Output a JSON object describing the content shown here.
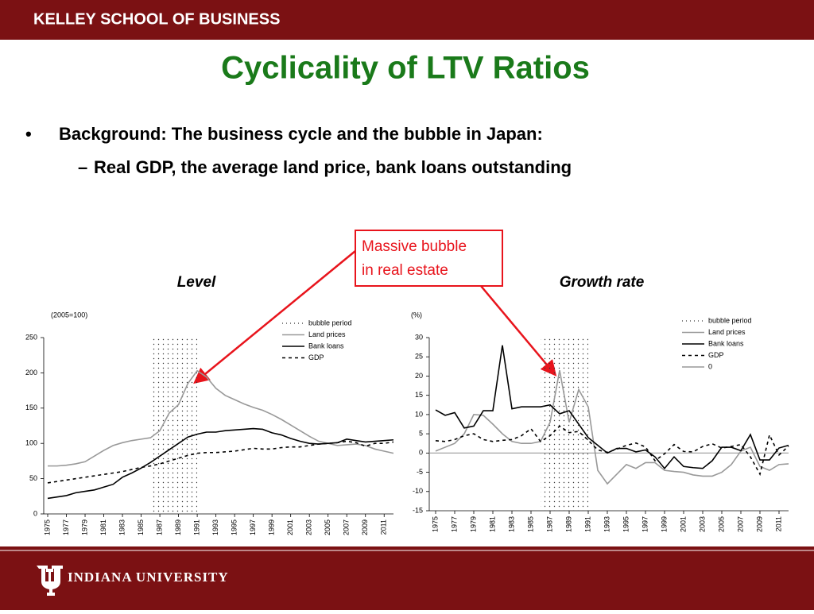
{
  "header": {
    "brand": "KELLEY SCHOOL OF BUSINESS"
  },
  "title": "Cyclicality of LTV Ratios",
  "bullets": [
    {
      "text": "Background: The business cycle and the bubble in Japan:",
      "sub": [
        "Real GDP, the average land price, bank loans outstanding"
      ]
    }
  ],
  "callout": [
    "Massive bubble",
    "in real estate"
  ],
  "footer": {
    "brand": "INDIANA UNIVERSITY"
  },
  "chart_data": [
    {
      "type": "line",
      "title": "Level",
      "unit_label": "(2005=100)",
      "x": [
        1975,
        1976,
        1977,
        1978,
        1979,
        1980,
        1981,
        1982,
        1983,
        1984,
        1985,
        1986,
        1987,
        1988,
        1989,
        1990,
        1991,
        1992,
        1993,
        1994,
        1995,
        1996,
        1997,
        1998,
        1999,
        2000,
        2001,
        2002,
        2003,
        2004,
        2005,
        2006,
        2007,
        2008,
        2009,
        2010,
        2011,
        2012
      ],
      "xlim": [
        1975,
        2012
      ],
      "xticks": [
        1975,
        1977,
        1979,
        1981,
        1983,
        1985,
        1987,
        1989,
        1991,
        1993,
        1995,
        1997,
        1999,
        2001,
        2003,
        2005,
        2007,
        2009,
        2011
      ],
      "ylim": [
        0,
        250
      ],
      "yticks": [
        0,
        50,
        100,
        150,
        200,
        250
      ],
      "bubble_period": {
        "name": "bubble period",
        "start": 1986,
        "end": 1991
      },
      "series": [
        {
          "name": "Land prices",
          "color": "#999999",
          "style": "solid",
          "values": [
            68,
            68,
            69,
            71,
            74,
            82,
            90,
            97,
            101,
            104,
            106,
            108,
            118,
            143,
            155,
            185,
            203,
            194,
            178,
            168,
            162,
            156,
            151,
            147,
            141,
            134,
            126,
            118,
            110,
            103,
            100,
            97,
            98,
            99,
            97,
            92,
            89,
            86
          ]
        },
        {
          "name": "Bank loans",
          "color": "#000000",
          "style": "solid",
          "values": [
            22,
            24,
            26,
            30,
            32,
            34,
            38,
            42,
            52,
            58,
            65,
            73,
            82,
            91,
            100,
            109,
            113,
            116,
            116,
            118,
            119,
            120,
            121,
            120,
            115,
            112,
            107,
            103,
            100,
            99,
            100,
            101,
            106,
            104,
            102,
            103,
            104,
            105
          ]
        },
        {
          "name": "GDP",
          "color": "#000000",
          "style": "dashed",
          "values": [
            44,
            46,
            48,
            50,
            52,
            54,
            56,
            58,
            60,
            63,
            66,
            68,
            71,
            75,
            79,
            83,
            86,
            87,
            87,
            88,
            89,
            91,
            93,
            92,
            92,
            94,
            95,
            95,
            97,
            99,
            100,
            101,
            103,
            101,
            96,
            100,
            100,
            102
          ]
        }
      ]
    },
    {
      "type": "line",
      "title": "Growth rate",
      "unit_label": "(%)",
      "x": [
        1975,
        1976,
        1977,
        1978,
        1979,
        1980,
        1981,
        1982,
        1983,
        1984,
        1985,
        1986,
        1987,
        1988,
        1989,
        1990,
        1991,
        1992,
        1993,
        1994,
        1995,
        1996,
        1997,
        1998,
        1999,
        2000,
        2001,
        2002,
        2003,
        2004,
        2005,
        2006,
        2007,
        2008,
        2009,
        2010,
        2011,
        2012
      ],
      "xlim": [
        1975,
        2012
      ],
      "xticks": [
        1975,
        1977,
        1979,
        1981,
        1983,
        1985,
        1987,
        1989,
        1991,
        1993,
        1995,
        1997,
        1999,
        2001,
        2003,
        2005,
        2007,
        2009,
        2011
      ],
      "ylim": [
        -15,
        30
      ],
      "yticks": [
        -15,
        -10,
        -5,
        0,
        5,
        10,
        15,
        20,
        25,
        30
      ],
      "bubble_period": {
        "name": "bubble period",
        "start": 1986,
        "end": 1991
      },
      "series": [
        {
          "name": "Land prices",
          "color": "#999999",
          "style": "solid",
          "values": [
            0.5,
            1.5,
            2.5,
            5,
            10,
            9.8,
            7.5,
            5,
            3,
            2.5,
            2.5,
            3,
            8,
            21.5,
            8,
            16.5,
            12,
            -4.5,
            -8,
            -5.5,
            -3,
            -4,
            -2.5,
            -2.5,
            -4.5,
            -4.8,
            -5,
            -5.7,
            -6,
            -6,
            -5,
            -3,
            0.5,
            1.5,
            -3.5,
            -4.5,
            -3,
            -2.8
          ]
        },
        {
          "name": "Bank loans",
          "color": "#000000",
          "style": "solid",
          "values": [
            11.2,
            9.8,
            10.5,
            6.5,
            7,
            11,
            11,
            28,
            11.5,
            12,
            12,
            12,
            12.5,
            10.2,
            11,
            7.5,
            4,
            2,
            0,
            1.2,
            1.2,
            0.3,
            0.8,
            -1,
            -4,
            -1,
            -3.5,
            -3.8,
            -4,
            -2,
            1.5,
            1.5,
            0.6,
            4.8,
            -1.8,
            -1.8,
            1.3,
            2
          ]
        },
        {
          "name": "GDP",
          "color": "#000000",
          "style": "dashed",
          "values": [
            3.2,
            3,
            3.5,
            4.5,
            5,
            3.5,
            3,
            3.3,
            3.5,
            4.5,
            6.3,
            3,
            4.5,
            7,
            5.3,
            5.6,
            3.3,
            0.8,
            0.2,
            1,
            2,
            2.6,
            1.6,
            -2,
            -0.2,
            2.2,
            0.4,
            0.3,
            1.7,
            2.4,
            1.3,
            1.7,
            2.2,
            -1,
            -5.5,
            4.7,
            -0.5,
            1.8
          ]
        }
      ],
      "reference_line": {
        "name": "0",
        "value": 0,
        "color": "#999999"
      }
    }
  ]
}
